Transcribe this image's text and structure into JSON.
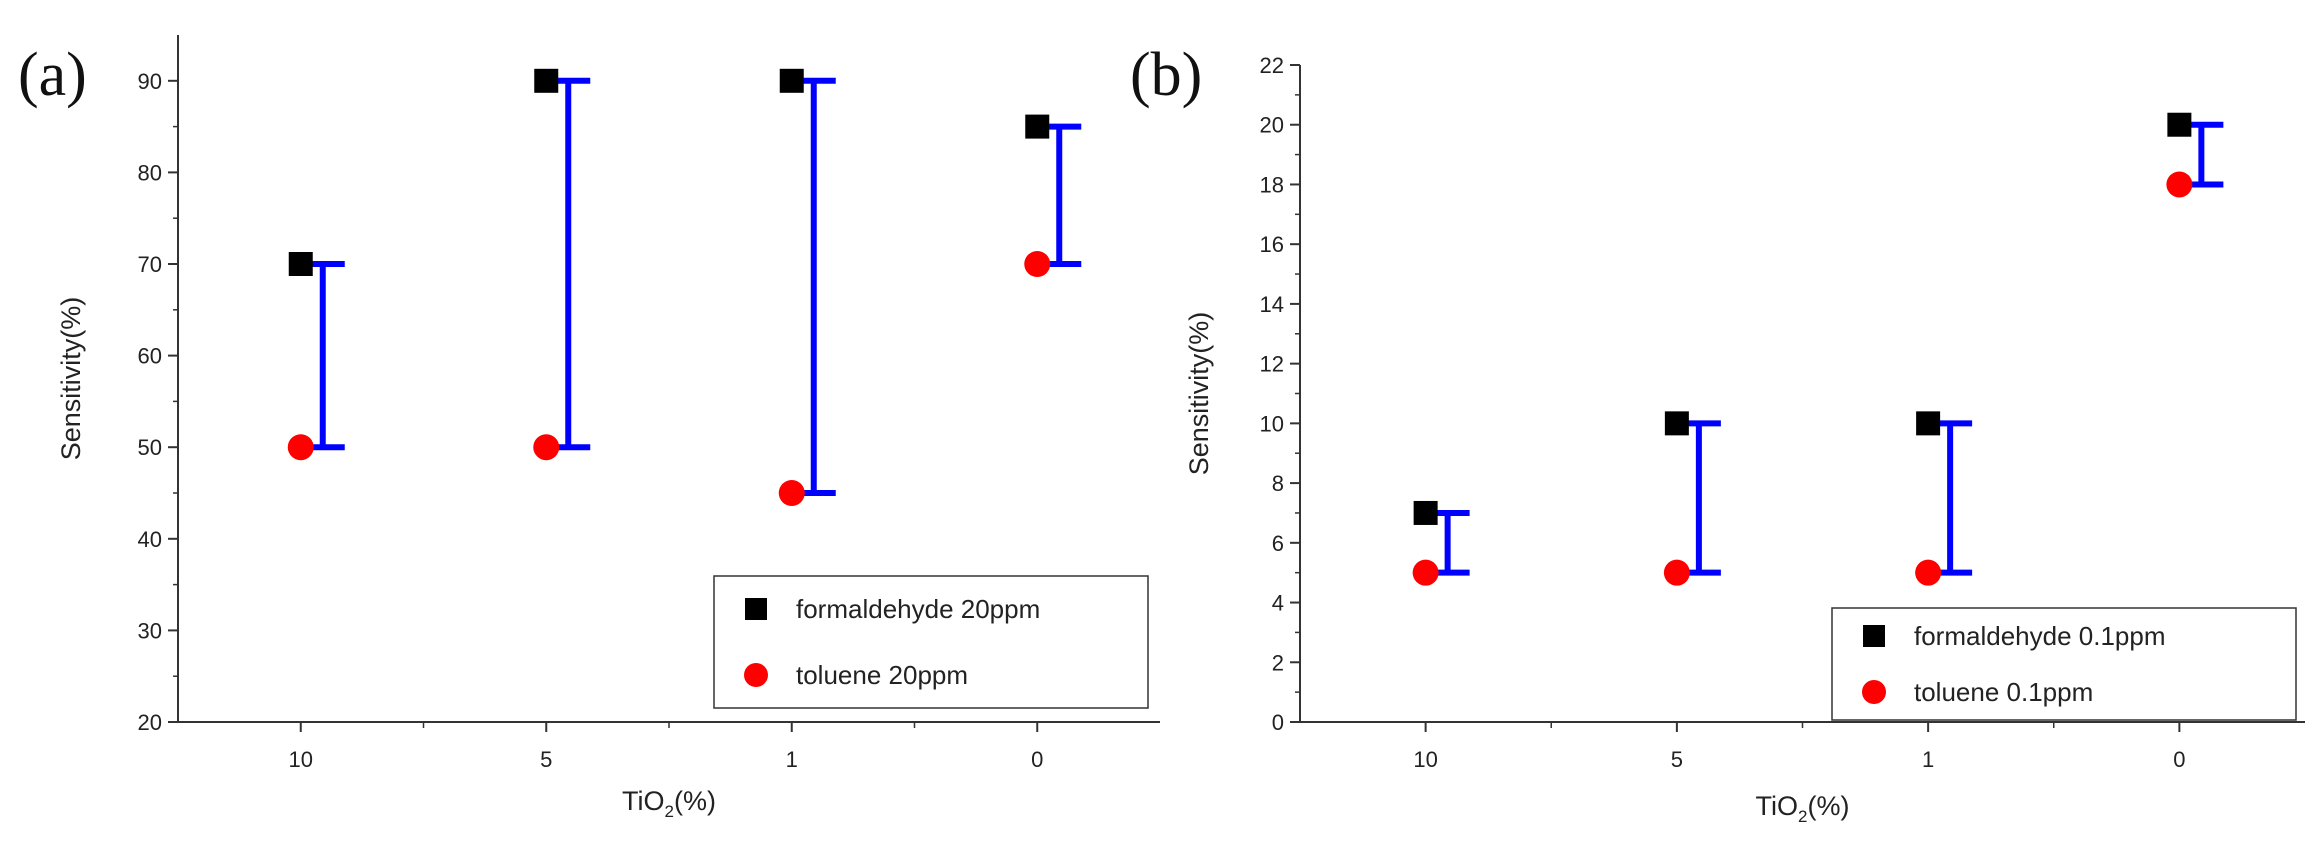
{
  "chart_data": [
    {
      "type": "scatter",
      "panel_label": "(a)",
      "categories": [
        "10",
        "5",
        "1",
        "0"
      ],
      "xlabel": {
        "main": "TiO",
        "sub": "2",
        "tail": "(%)"
      },
      "ylabel": "Sensitivity(%)",
      "ylim": [
        20,
        95
      ],
      "yticks": [
        20,
        30,
        40,
        50,
        60,
        70,
        80,
        90
      ],
      "grid": false,
      "legend_position": "bottom-right",
      "series": [
        {
          "name": "formaldehyde 20ppm",
          "marker": "square",
          "color": "#000000",
          "values": [
            70,
            90,
            90,
            85
          ]
        },
        {
          "name": "toluene 20ppm",
          "marker": "circle",
          "color": "#ff0000",
          "values": [
            50,
            50,
            45,
            70
          ]
        }
      ],
      "range_bar_color": "#0000ff"
    },
    {
      "type": "scatter",
      "panel_label": "(b)",
      "categories": [
        "10",
        "5",
        "1",
        "0"
      ],
      "xlabel": {
        "main": "TiO",
        "sub": "2",
        "tail": "(%)"
      },
      "ylabel": "Sensitivity(%)",
      "ylim": [
        0,
        22
      ],
      "yticks": [
        0,
        2,
        4,
        6,
        8,
        10,
        12,
        14,
        16,
        18,
        20,
        22
      ],
      "grid": false,
      "legend_position": "bottom-right",
      "series": [
        {
          "name": "formaldehyde 0.1ppm",
          "marker": "square",
          "color": "#000000",
          "values": [
            7,
            10,
            10,
            20
          ]
        },
        {
          "name": "toluene 0.1ppm",
          "marker": "circle",
          "color": "#ff0000",
          "values": [
            5,
            5,
            5,
            18
          ]
        }
      ],
      "range_bar_color": "#0000ff"
    }
  ]
}
